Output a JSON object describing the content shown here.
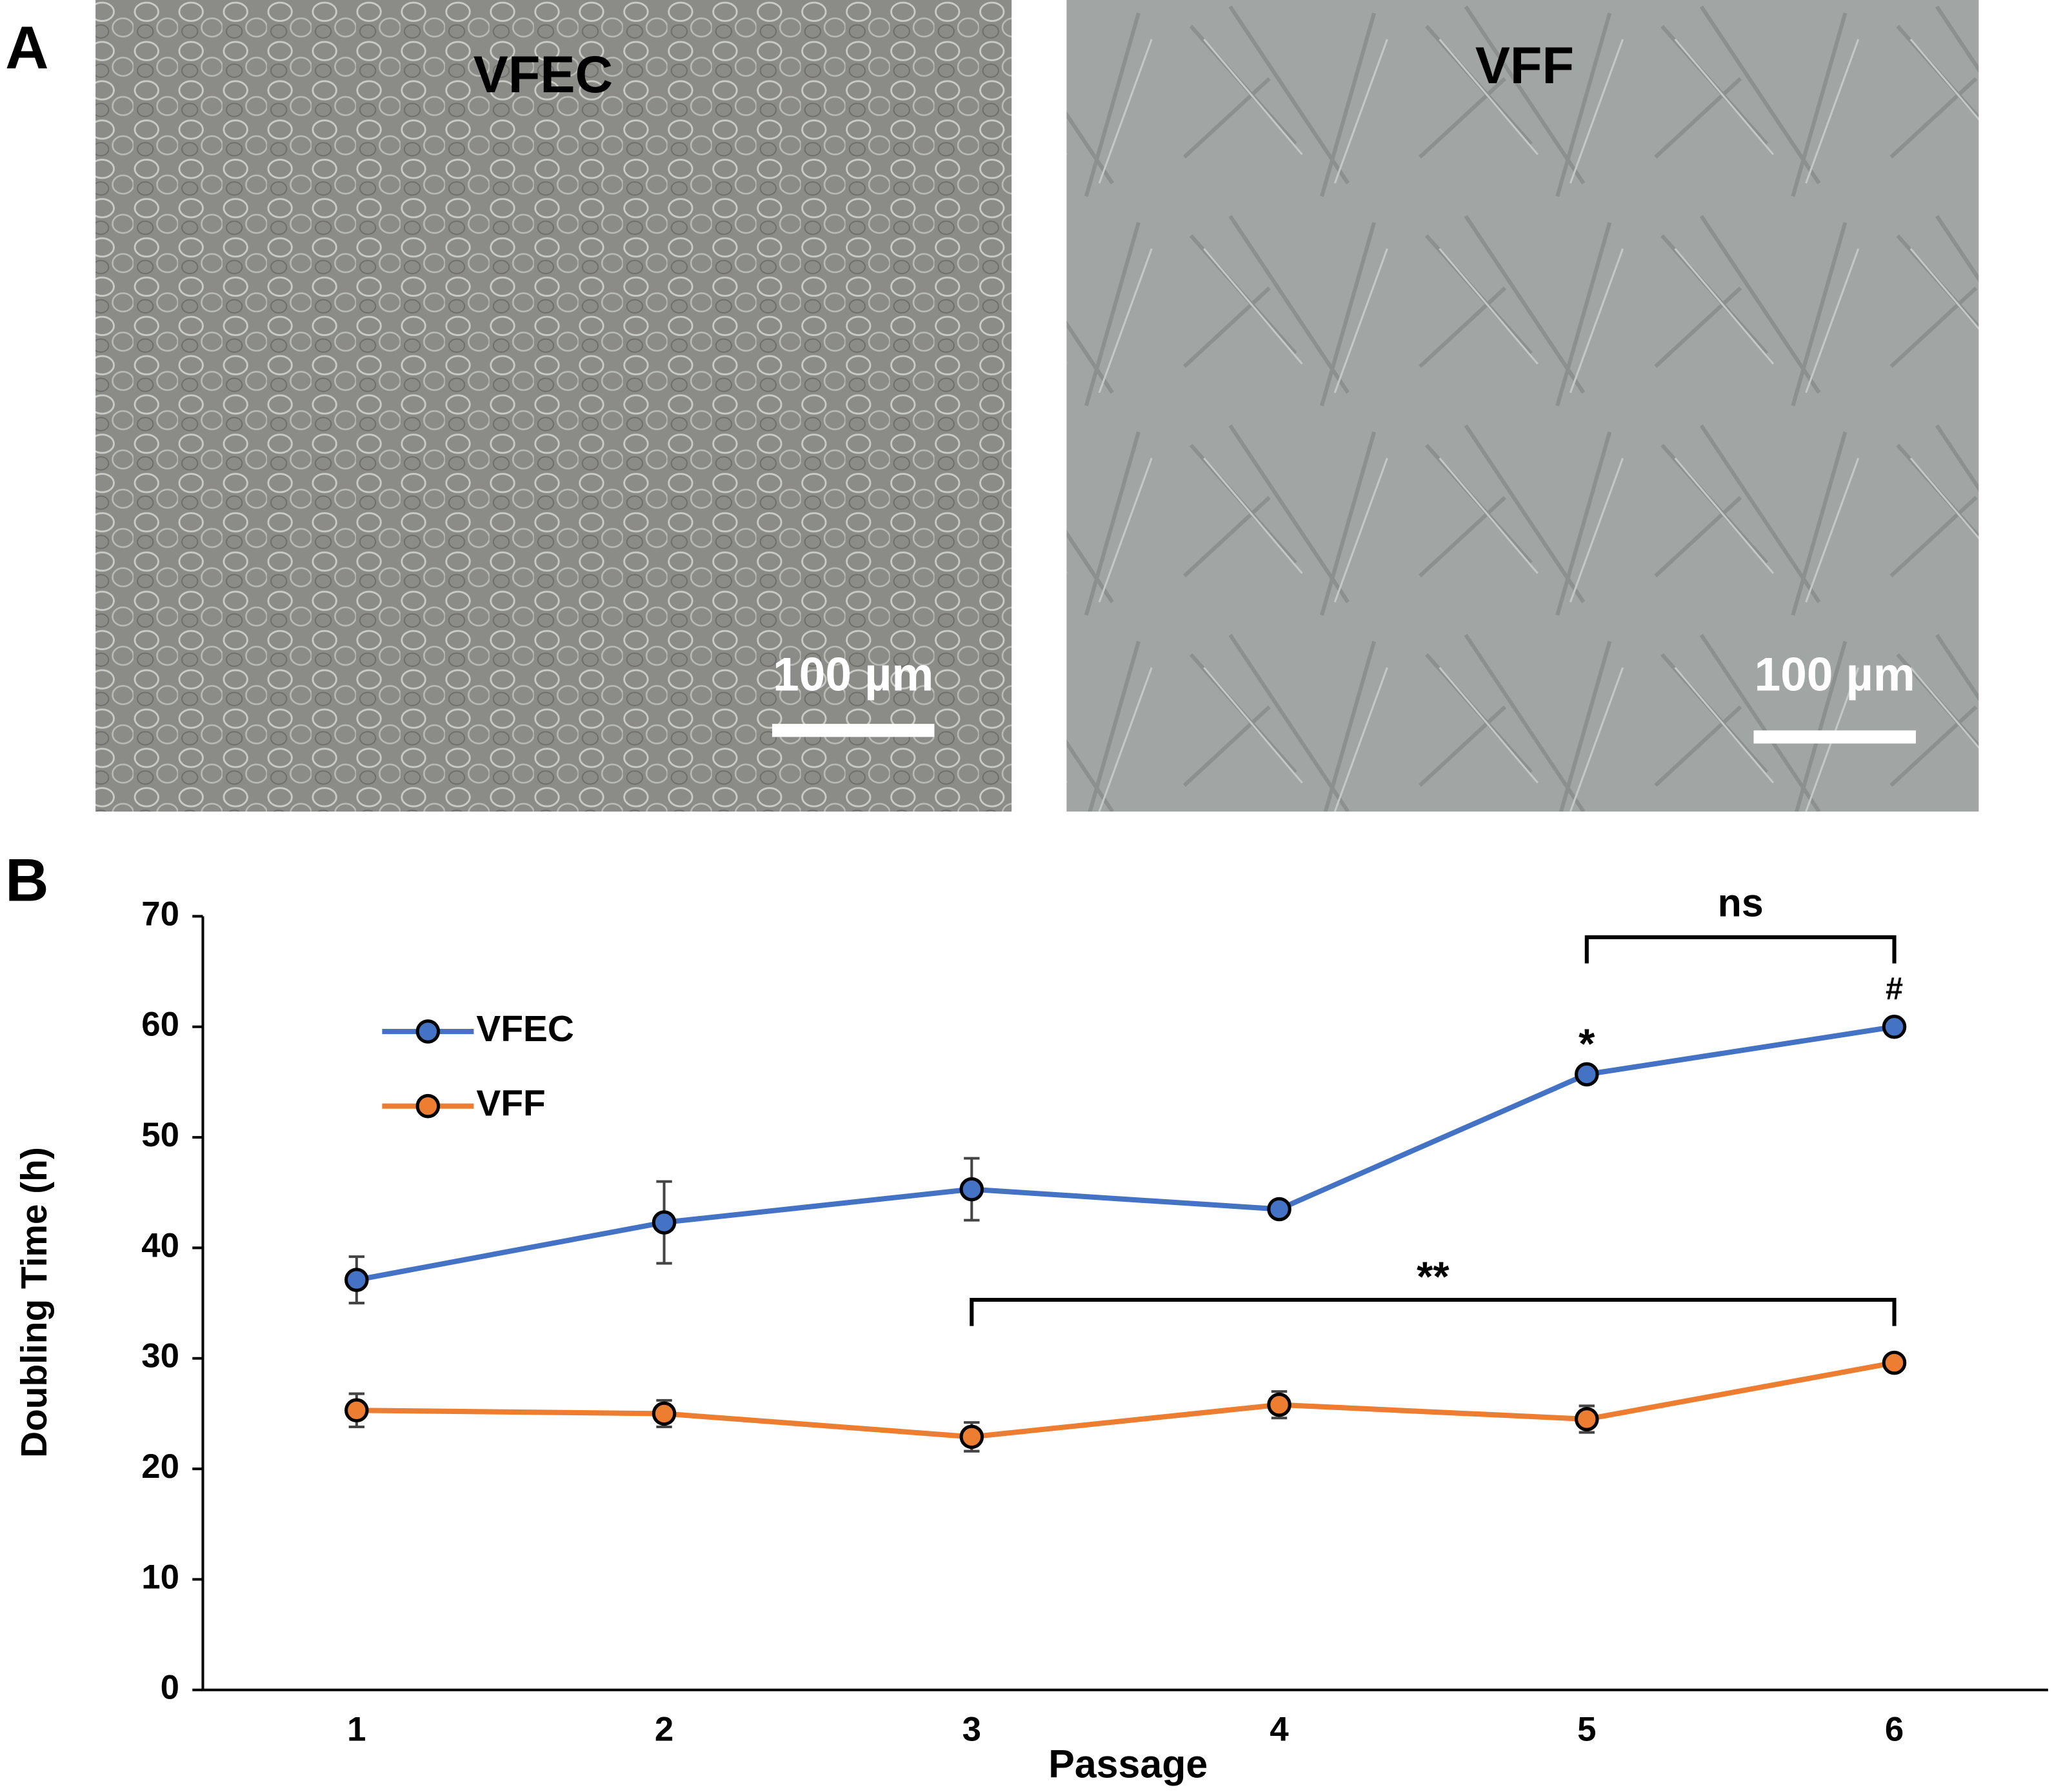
{
  "panel_a": {
    "label": "A",
    "images": [
      {
        "title": "VFEC",
        "scale_bar": "100 µm"
      },
      {
        "title": "VFF",
        "scale_bar": "100 µm"
      }
    ]
  },
  "panel_b": {
    "label": "B"
  },
  "chart_data": {
    "type": "line",
    "x_label": "Passage",
    "y_label": "Doubling Time (h)",
    "x": [
      1,
      2,
      3,
      4,
      5,
      6
    ],
    "xlim": [
      0.5,
      6.5
    ],
    "ylim": [
      0,
      70
    ],
    "yticks": [
      0,
      10,
      20,
      30,
      40,
      50,
      60,
      70
    ],
    "legend": "upper left",
    "series": [
      {
        "name": "VFEC",
        "color": "#4472c4",
        "values": [
          37.1,
          42.3,
          45.3,
          43.5,
          55.7,
          60.0
        ],
        "errors": [
          2.1,
          3.7,
          2.8,
          0.5,
          0.7,
          0.5
        ]
      },
      {
        "name": "VFF",
        "color": "#ed7d31",
        "values": [
          25.3,
          25.0,
          22.9,
          25.8,
          24.5,
          29.6
        ],
        "errors": [
          1.5,
          1.2,
          1.3,
          1.2,
          1.2,
          0.7
        ]
      }
    ],
    "annotations": [
      "ns",
      "**",
      "*",
      "#"
    ]
  }
}
